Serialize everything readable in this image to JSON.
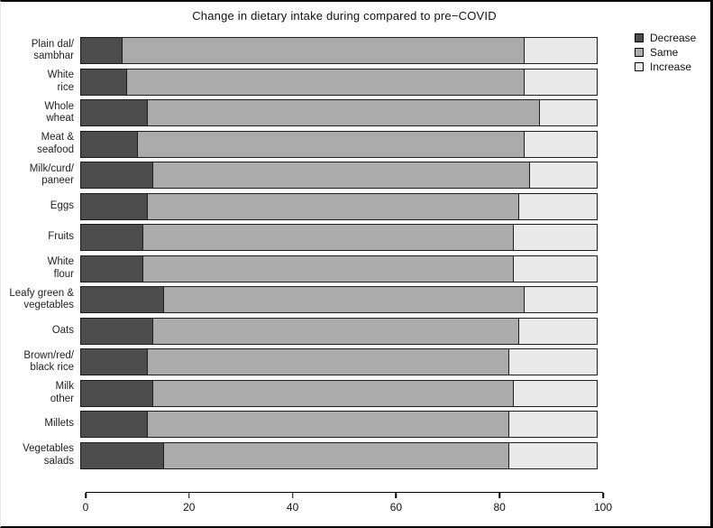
{
  "title": "Change in dietary intake during compared to pre−COVID",
  "colors": {
    "decrease": "#4d4d4d",
    "same": "#ababab",
    "increase": "#e9e9e9",
    "bar_border": "#1c1c1c",
    "background": "#ffffff"
  },
  "legend": {
    "position": "top-right",
    "items": [
      {
        "label": "Decrease",
        "color": "#4d4d4d"
      },
      {
        "label": "Same",
        "color": "#ababab"
      },
      {
        "label": "Increase",
        "color": "#e9e9e9"
      }
    ]
  },
  "x_axis": {
    "min": 0,
    "max": 100,
    "ticks": [
      "0",
      "20",
      "40",
      "60",
      "80",
      "100"
    ]
  },
  "chart_data": {
    "type": "bar",
    "orientation": "horizontal",
    "stacked": true,
    "title": "Change in dietary intake during compared to pre−COVID",
    "xlabel": "",
    "ylabel": "",
    "xlim": [
      0,
      100
    ],
    "grid": false,
    "legend_position": "top-right",
    "categories": [
      "Plain dal/\nsambhar",
      "White\nrice",
      "Whole\nwheat",
      "Meat &\nseafood",
      "Milk/curd/\npaneer",
      "Eggs",
      "Fruits",
      "White\nflour",
      "Leafy green &\nvegetables",
      "Oats",
      "Brown/red/\nblack rice",
      "Milk\nother",
      "Millets",
      "Vegetables\nsalads"
    ],
    "series": [
      {
        "name": "Decrease",
        "color": "#4d4d4d",
        "values": [
          8,
          9,
          13,
          11,
          14,
          13,
          12,
          12,
          16,
          14,
          13,
          14,
          13,
          16
        ]
      },
      {
        "name": "Same",
        "color": "#ababab",
        "values": [
          78,
          77,
          76,
          75,
          73,
          72,
          72,
          72,
          70,
          71,
          70,
          70,
          70,
          67
        ]
      },
      {
        "name": "Increase",
        "color": "#e9e9e9",
        "values": [
          14,
          14,
          11,
          14,
          13,
          15,
          16,
          16,
          14,
          15,
          17,
          16,
          17,
          17
        ]
      }
    ]
  }
}
